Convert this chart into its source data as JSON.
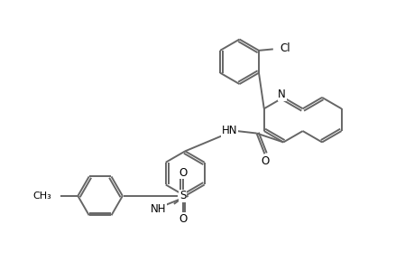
{
  "background_color": "#ffffff",
  "line_color": "#666666",
  "text_color": "#000000",
  "line_width": 1.4,
  "font_size": 8.5,
  "figsize": [
    4.6,
    3.0
  ],
  "dpi": 100,
  "xlim": [
    0,
    9.2
  ],
  "ylim": [
    0,
    6.0
  ]
}
